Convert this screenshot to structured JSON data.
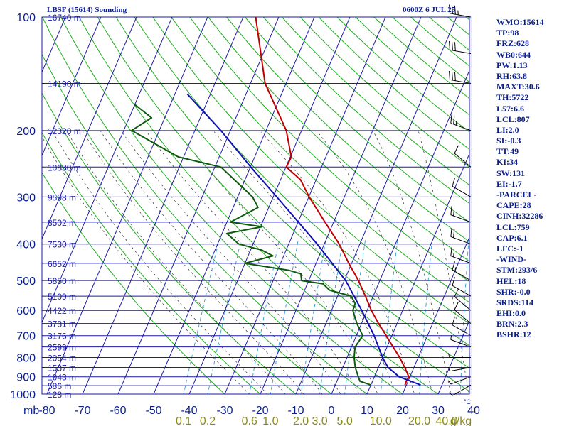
{
  "header": {
    "station": "LBSF (15614) Sounding",
    "timestamp": "0600Z  6 JUL 25"
  },
  "colors": {
    "background": "#ffffff",
    "grid": "#1a1aa6",
    "dry_adiabats": "#1fae1f",
    "moist_adiabats": "#333333",
    "mixing_ratio": "#2a9fd6",
    "temperature": "#c00000",
    "dewpoint": "#0d5a0d",
    "parcel": "#1010b0",
    "labels": "#0a1e8c",
    "mixing_labels": "#8a8a1a"
  },
  "indices": [
    "WMO:15614",
    "TP:98",
    "FRZ:628",
    "WB0:644",
    "PW:1.13",
    "RH:63.8",
    "MAXT:30.6",
    "TH:5722",
    "L57:6.6",
    "LCL:807",
    "LI:2.0",
    "SI:-0.3",
    "TT:49",
    "KI:34",
    "SW:131",
    "EI:-1.7",
    "-PARCEL-",
    "CAPE:28",
    "CINH:32286",
    "LCL:759",
    "CAP:6.1",
    "LFC:-1",
    "-WIND-",
    "STM:293/6",
    "HEL:18",
    "SHR:-0.0",
    "SRDS:114",
    "EHI:0.0",
    "BRN:2.3",
    "BSHR:12"
  ],
  "chart_data": {
    "type": "line",
    "title": "LBSF (15614) Sounding",
    "subtitle": "0600Z  6 JUL 25",
    "xlabel": "",
    "ylabel": "mb",
    "x_axis_unit": "°C",
    "y_scale": "log",
    "xlim": [
      -80,
      40
    ],
    "ylim": [
      1000,
      100
    ],
    "skew": true,
    "grid": true,
    "pressure_ticks": [
      100,
      200,
      300,
      400,
      500,
      600,
      700,
      800,
      900,
      1000
    ],
    "temperature_ticks": [
      -80,
      -70,
      -60,
      -50,
      -40,
      -30,
      -20,
      -10,
      0,
      10,
      20,
      30,
      40
    ],
    "height_labels": [
      {
        "p": 100,
        "label": "16740 m"
      },
      {
        "p": 150,
        "label": "14190 m"
      },
      {
        "p": 200,
        "label": "12320 m"
      },
      {
        "p": 250,
        "label": "10830 m"
      },
      {
        "p": 300,
        "label": "9598 m"
      },
      {
        "p": 350,
        "label": "8502 m"
      },
      {
        "p": 400,
        "label": "7530 m"
      },
      {
        "p": 450,
        "label": "6652 m"
      },
      {
        "p": 500,
        "label": "5850 m"
      },
      {
        "p": 550,
        "label": "5109 m"
      },
      {
        "p": 600,
        "label": "4422 m"
      },
      {
        "p": 650,
        "label": "3781 m"
      },
      {
        "p": 700,
        "label": "3176 m"
      },
      {
        "p": 750,
        "label": "2599 m"
      },
      {
        "p": 800,
        "label": "2054 m"
      },
      {
        "p": 850,
        "label": "1537 m"
      },
      {
        "p": 900,
        "label": "1043 m"
      },
      {
        "p": 950,
        "label": "586 m"
      },
      {
        "p": 1000,
        "label": "128 m"
      }
    ],
    "mixing_ratio_labels": [
      "0.1",
      "0.2",
      "0.6",
      "1.0",
      "2.0",
      "3.0",
      "5.0",
      "10.0",
      "20.0",
      "40.0",
      "g/kg"
    ],
    "series": [
      {
        "name": "Temperature",
        "color": "#c00000",
        "points": [
          {
            "p": 946,
            "t": 19.6
          },
          {
            "p": 925,
            "t": 19.5
          },
          {
            "p": 900,
            "t": 19.7
          },
          {
            "p": 850,
            "t": 17.4
          },
          {
            "p": 800,
            "t": 14.8
          },
          {
            "p": 750,
            "t": 11.7
          },
          {
            "p": 700,
            "t": 8.4
          },
          {
            "p": 650,
            "t": 4.8
          },
          {
            "p": 600,
            "t": 1.2
          },
          {
            "p": 550,
            "t": -2.2
          },
          {
            "p": 500,
            "t": -6.0
          },
          {
            "p": 450,
            "t": -10.8
          },
          {
            "p": 400,
            "t": -15.8
          },
          {
            "p": 350,
            "t": -22.4
          },
          {
            "p": 300,
            "t": -29.9
          },
          {
            "p": 270,
            "t": -34.4
          },
          {
            "p": 250,
            "t": -39.9
          },
          {
            "p": 235,
            "t": -39.7
          },
          {
            "p": 200,
            "t": -44.3
          },
          {
            "p": 150,
            "t": -55.9
          },
          {
            "p": 100,
            "t": -66.5
          }
        ]
      },
      {
        "name": "Dewpoint",
        "color": "#0d5a0d",
        "points": [
          {
            "p": 946,
            "t": 10.0
          },
          {
            "p": 925,
            "t": 6.5
          },
          {
            "p": 900,
            "t": 5.5
          },
          {
            "p": 850,
            "t": 3.5
          },
          {
            "p": 800,
            "t": 2.0
          },
          {
            "p": 750,
            "t": 1.0
          },
          {
            "p": 700,
            "t": 1.8
          },
          {
            "p": 650,
            "t": -1.3
          },
          {
            "p": 600,
            "t": -4.0
          },
          {
            "p": 575,
            "t": -4.2
          },
          {
            "p": 550,
            "t": -6.2
          },
          {
            "p": 530,
            "t": -13.0
          },
          {
            "p": 510,
            "t": -15.6
          },
          {
            "p": 500,
            "t": -22.0
          },
          {
            "p": 480,
            "t": -23.0
          },
          {
            "p": 470,
            "t": -26.6
          },
          {
            "p": 450,
            "t": -40.0
          },
          {
            "p": 430,
            "t": -33.0
          },
          {
            "p": 415,
            "t": -36.9
          },
          {
            "p": 400,
            "t": -44.0
          },
          {
            "p": 375,
            "t": -48.7
          },
          {
            "p": 360,
            "t": -39.6
          },
          {
            "p": 350,
            "t": -49.0
          },
          {
            "p": 320,
            "t": -43.0
          },
          {
            "p": 300,
            "t": -45.8
          },
          {
            "p": 250,
            "t": -58.3
          },
          {
            "p": 235,
            "t": -71.5
          },
          {
            "p": 200,
            "t": -87.8
          },
          {
            "p": 185,
            "t": -83.7
          },
          {
            "p": 170,
            "t": -90.3
          }
        ]
      },
      {
        "name": "Parcel",
        "color": "#1010b0",
        "points": [
          {
            "p": 946,
            "t": 24.0
          },
          {
            "p": 900,
            "t": 17.0
          },
          {
            "p": 850,
            "t": 12.7
          },
          {
            "p": 800,
            "t": 10.0
          },
          {
            "p": 700,
            "t": 5.0
          },
          {
            "p": 600,
            "t": -1.5
          },
          {
            "p": 500,
            "t": -9.6
          },
          {
            "p": 400,
            "t": -22.0
          },
          {
            "p": 300,
            "t": -39.0
          },
          {
            "p": 250,
            "t": -49.9
          },
          {
            "p": 200,
            "t": -62.7
          },
          {
            "p": 160,
            "t": -76.5
          }
        ]
      }
    ],
    "wind_barbs": [
      {
        "p": 946,
        "dir": 300,
        "spd": 5
      },
      {
        "p": 900,
        "dir": 290,
        "spd": 5
      },
      {
        "p": 850,
        "dir": 280,
        "spd": 5
      },
      {
        "p": 800,
        "dir": 270,
        "spd": 5
      },
      {
        "p": 750,
        "dir": 250,
        "spd": 5
      },
      {
        "p": 700,
        "dir": 240,
        "spd": 10
      },
      {
        "p": 650,
        "dir": 230,
        "spd": 10
      },
      {
        "p": 600,
        "dir": 230,
        "spd": 10
      },
      {
        "p": 550,
        "dir": 240,
        "spd": 10
      },
      {
        "p": 500,
        "dir": 240,
        "spd": 15
      },
      {
        "p": 450,
        "dir": 250,
        "spd": 15
      },
      {
        "p": 400,
        "dir": 250,
        "spd": 20
      },
      {
        "p": 350,
        "dir": 250,
        "spd": 15
      },
      {
        "p": 300,
        "dir": 240,
        "spd": 10
      },
      {
        "p": 250,
        "dir": 230,
        "spd": 10
      },
      {
        "p": 200,
        "dir": 250,
        "spd": 25
      },
      {
        "p": 150,
        "dir": 260,
        "spd": 30
      },
      {
        "p": 125,
        "dir": 260,
        "spd": 30
      },
      {
        "p": 100,
        "dir": 260,
        "spd": 35
      }
    ]
  }
}
